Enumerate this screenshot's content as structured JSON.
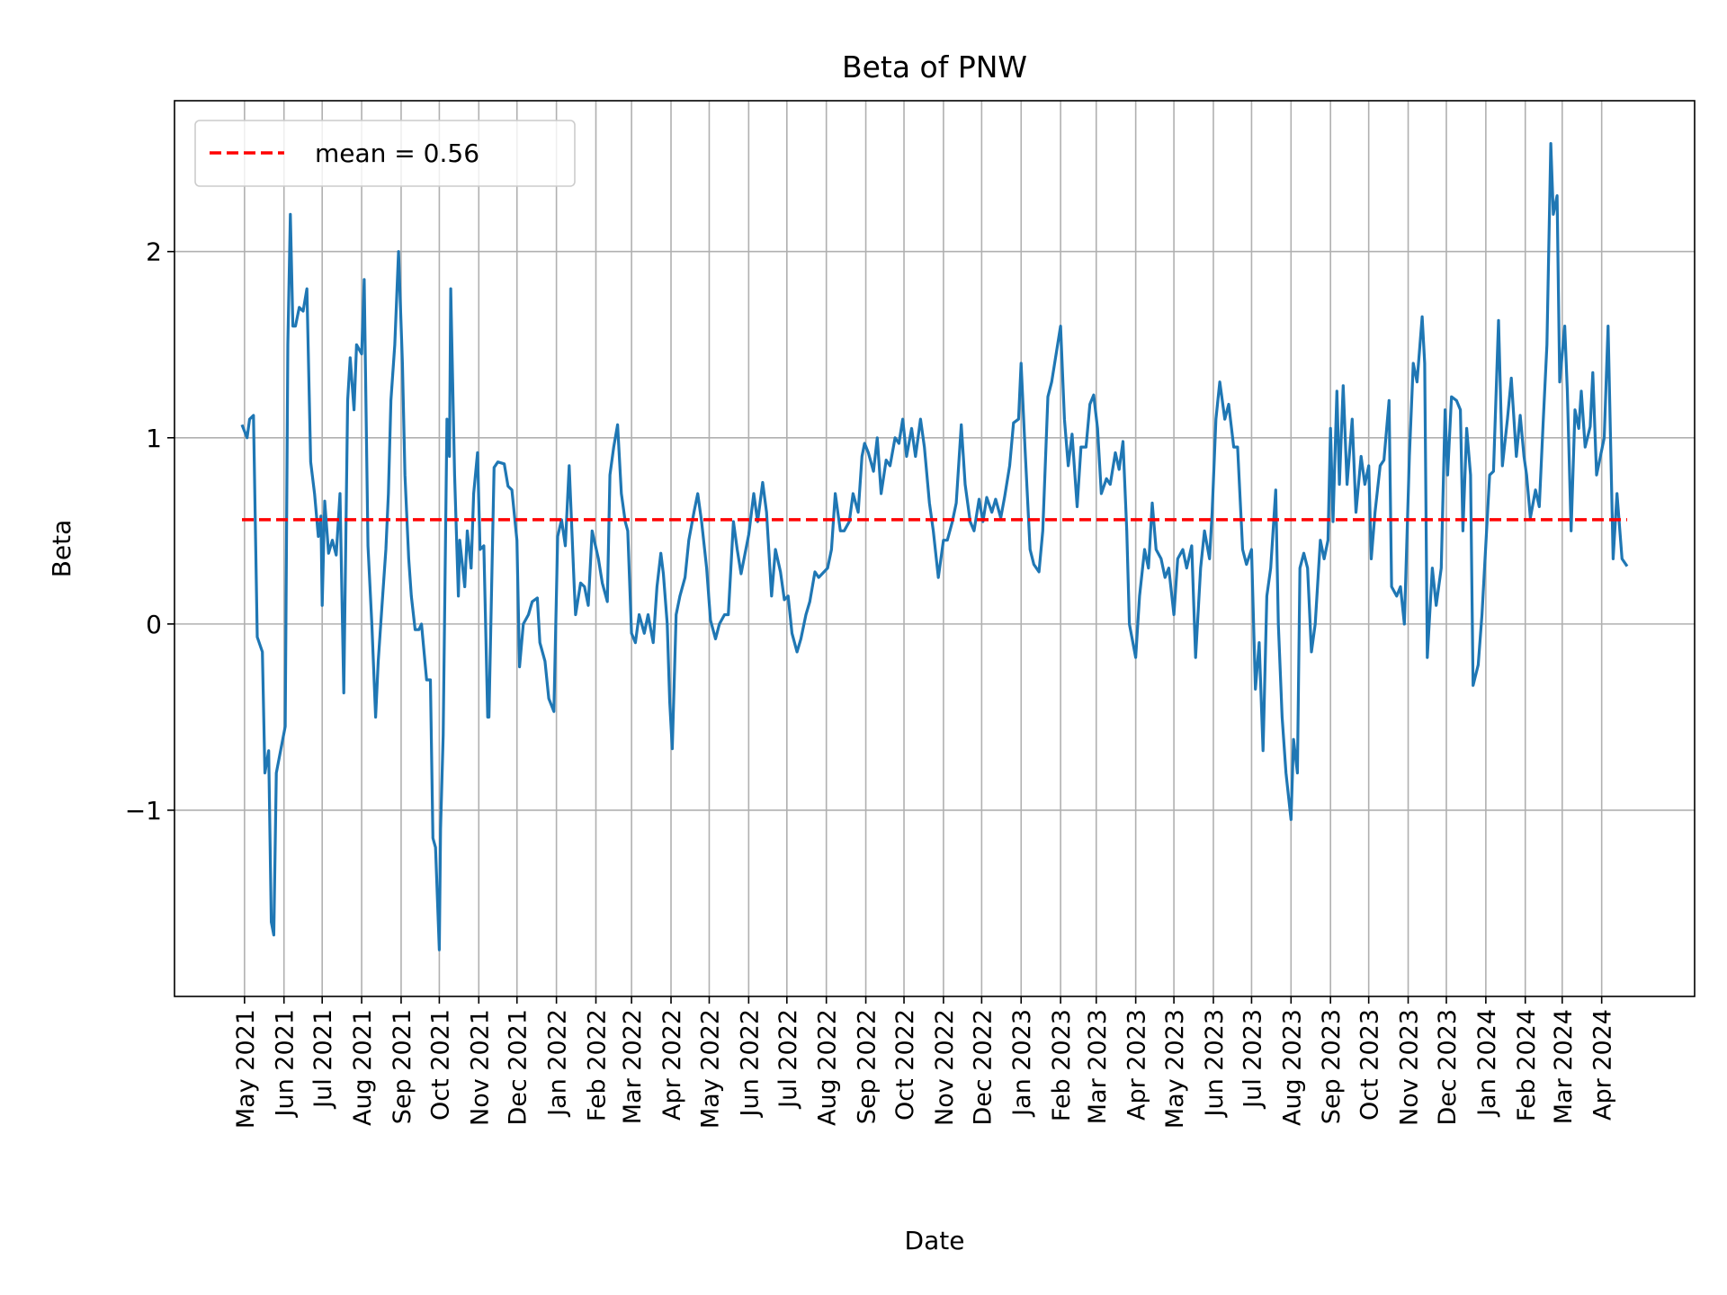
{
  "chart_data": {
    "type": "line",
    "title": "Beta of PNW",
    "xlabel": "Date",
    "ylabel": "Beta",
    "ylim": [
      -2.0,
      2.81
    ],
    "xlim": [
      "2021-03-07",
      "2024-06-13"
    ],
    "grid": true,
    "legend_placement": "top-left",
    "yticks": [
      -1,
      0,
      1,
      2
    ],
    "ytick_labels": [
      "−1",
      "0",
      "1",
      "2"
    ],
    "xticks": [
      "2021-05-01",
      "2021-06-01",
      "2021-07-01",
      "2021-08-01",
      "2021-09-01",
      "2021-10-01",
      "2021-11-01",
      "2021-12-01",
      "2022-01-01",
      "2022-02-01",
      "2022-03-01",
      "2022-04-01",
      "2022-05-01",
      "2022-06-01",
      "2022-07-01",
      "2022-08-01",
      "2022-09-01",
      "2022-10-01",
      "2022-11-01",
      "2022-12-01",
      "2023-01-01",
      "2023-02-01",
      "2023-03-01",
      "2023-04-01",
      "2023-05-01",
      "2023-06-01",
      "2023-07-01",
      "2023-08-01",
      "2023-09-01",
      "2023-10-01",
      "2023-11-01",
      "2023-12-01",
      "2024-01-01",
      "2024-02-01",
      "2024-03-01",
      "2024-04-01"
    ],
    "xtick_labels": [
      "May 2021",
      "Jun 2021",
      "Jul 2021",
      "Aug 2021",
      "Sep 2021",
      "Oct 2021",
      "Nov 2021",
      "Dec 2021",
      "Jan 2022",
      "Feb 2022",
      "Mar 2022",
      "Apr 2022",
      "May 2022",
      "Jun 2022",
      "Jul 2022",
      "Aug 2022",
      "Sep 2022",
      "Oct 2022",
      "Nov 2022",
      "Dec 2022",
      "Jan 2023",
      "Feb 2023",
      "Mar 2023",
      "Apr 2023",
      "May 2023",
      "Jun 2023",
      "Jul 2023",
      "Aug 2023",
      "Sep 2023",
      "Oct 2023",
      "Nov 2023",
      "Dec 2023",
      "Jan 2024",
      "Feb 2024",
      "Mar 2024",
      "Apr 2024"
    ],
    "colors": {
      "series": "#1f77b4",
      "mean": "#ff0000",
      "grid": "#b0b0b0"
    },
    "mean": {
      "label": "mean = 0.56",
      "value": 0.56
    },
    "series": [
      {
        "x": [
          "2021-04-29",
          "2021-05-03",
          "2021-05-05",
          "2021-05-08",
          "2021-05-11",
          "2021-05-15",
          "2021-05-17",
          "2021-05-20",
          "2021-05-22",
          "2021-05-24",
          "2021-05-26",
          "2021-06-02",
          "2021-06-04",
          "2021-06-06",
          "2021-06-08",
          "2021-06-10",
          "2021-06-13",
          "2021-06-16",
          "2021-06-19",
          "2021-06-22",
          "2021-06-25",
          "2021-06-28",
          "2021-06-30",
          "2021-07-01",
          "2021-07-03",
          "2021-07-06",
          "2021-07-09",
          "2021-07-12",
          "2021-07-15",
          "2021-07-18",
          "2021-07-21",
          "2021-07-23",
          "2021-07-26",
          "2021-07-28",
          "2021-08-01",
          "2021-08-03",
          "2021-08-06",
          "2021-08-09",
          "2021-08-12",
          "2021-08-14",
          "2021-08-17",
          "2021-08-20",
          "2021-08-22",
          "2021-08-24",
          "2021-08-27",
          "2021-08-30",
          "2021-09-02",
          "2021-09-04",
          "2021-09-07",
          "2021-09-09",
          "2021-09-12",
          "2021-09-15",
          "2021-09-17",
          "2021-09-21",
          "2021-09-24",
          "2021-09-26",
          "2021-09-28",
          "2021-10-01",
          "2021-10-02",
          "2021-10-04",
          "2021-10-07",
          "2021-10-09",
          "2021-10-10",
          "2021-10-13",
          "2021-10-16",
          "2021-10-17",
          "2021-10-21",
          "2021-10-23",
          "2021-10-26",
          "2021-10-28",
          "2021-10-31",
          "2021-11-02",
          "2021-11-05",
          "2021-11-08",
          "2021-11-09",
          "2021-11-13",
          "2021-11-16",
          "2021-11-21",
          "2021-11-24",
          "2021-11-27",
          "2021-12-01",
          "2021-12-03",
          "2021-12-06",
          "2021-12-10",
          "2021-12-13",
          "2021-12-17",
          "2021-12-19",
          "2021-12-23",
          "2021-12-26",
          "2021-12-30",
          "2022-01-02",
          "2022-01-05",
          "2022-01-08",
          "2022-01-11",
          "2022-01-15",
          "2022-01-16",
          "2022-01-20",
          "2022-01-23",
          "2022-01-26",
          "2022-01-29",
          "2022-02-03",
          "2022-02-06",
          "2022-02-10",
          "2022-02-12",
          "2022-02-15",
          "2022-02-18",
          "2022-02-21",
          "2022-02-24",
          "2022-02-26",
          "2022-03-01",
          "2022-03-04",
          "2022-03-07",
          "2022-03-11",
          "2022-03-14",
          "2022-03-18",
          "2022-03-21",
          "2022-03-24",
          "2022-03-26",
          "2022-03-29",
          "2022-03-31",
          "2022-04-02",
          "2022-04-05",
          "2022-04-08",
          "2022-04-12",
          "2022-04-15",
          "2022-04-19",
          "2022-04-22",
          "2022-04-25",
          "2022-04-29",
          "2022-05-02",
          "2022-05-06",
          "2022-05-09",
          "2022-05-13",
          "2022-05-16",
          "2022-05-20",
          "2022-05-23",
          "2022-05-26",
          "2022-06-01",
          "2022-06-05",
          "2022-06-08",
          "2022-06-12",
          "2022-06-15",
          "2022-06-19",
          "2022-06-22",
          "2022-06-26",
          "2022-06-29",
          "2022-07-02",
          "2022-07-05",
          "2022-07-09",
          "2022-07-12",
          "2022-07-16",
          "2022-07-19",
          "2022-07-23",
          "2022-07-26",
          "2022-08-02",
          "2022-08-05",
          "2022-08-08",
          "2022-08-12",
          "2022-08-15",
          "2022-08-19",
          "2022-08-22",
          "2022-08-26",
          "2022-08-29",
          "2022-08-31",
          "2022-09-03",
          "2022-09-07",
          "2022-09-10",
          "2022-09-13",
          "2022-09-17",
          "2022-09-20",
          "2022-09-24",
          "2022-09-27",
          "2022-09-30",
          "2022-10-03",
          "2022-10-07",
          "2022-10-10",
          "2022-10-14",
          "2022-10-17",
          "2022-10-21",
          "2022-10-24",
          "2022-10-28",
          "2022-11-01",
          "2022-11-04",
          "2022-11-08",
          "2022-11-11",
          "2022-11-15",
          "2022-11-18",
          "2022-11-22",
          "2022-11-25",
          "2022-11-29",
          "2022-12-02",
          "2022-12-05",
          "2022-12-09",
          "2022-12-12",
          "2022-12-16",
          "2022-12-19",
          "2022-12-23",
          "2022-12-26",
          "2022-12-30",
          "2023-01-01",
          "2023-01-04",
          "2023-01-08",
          "2023-01-11",
          "2023-01-15",
          "2023-01-18",
          "2023-01-22",
          "2023-01-25",
          "2023-02-01",
          "2023-02-04",
          "2023-02-07",
          "2023-02-10",
          "2023-02-14",
          "2023-02-17",
          "2023-02-21",
          "2023-02-24",
          "2023-02-27",
          "2023-03-02",
          "2023-03-05",
          "2023-03-09",
          "2023-03-12",
          "2023-03-16",
          "2023-03-19",
          "2023-03-22",
          "2023-03-25",
          "2023-03-27",
          "2023-04-01",
          "2023-04-04",
          "2023-04-08",
          "2023-04-11",
          "2023-04-14",
          "2023-04-17",
          "2023-04-21",
          "2023-04-24",
          "2023-04-27",
          "2023-05-01",
          "2023-05-04",
          "2023-05-08",
          "2023-05-11",
          "2023-05-15",
          "2023-05-18",
          "2023-05-22",
          "2023-05-25",
          "2023-05-29",
          "2023-05-31",
          "2023-06-03",
          "2023-06-06",
          "2023-06-10",
          "2023-06-13",
          "2023-06-17",
          "2023-06-20",
          "2023-06-24",
          "2023-06-27",
          "2023-07-01",
          "2023-07-04",
          "2023-07-07",
          "2023-07-10",
          "2023-07-13",
          "2023-07-16",
          "2023-07-20",
          "2023-07-22",
          "2023-07-25",
          "2023-07-28",
          "2023-08-01",
          "2023-08-03",
          "2023-08-06",
          "2023-08-08",
          "2023-08-11",
          "2023-08-14",
          "2023-08-17",
          "2023-08-20",
          "2023-08-24",
          "2023-08-27",
          "2023-08-30",
          "2023-09-01",
          "2023-09-03",
          "2023-09-06",
          "2023-09-08",
          "2023-09-11",
          "2023-09-14",
          "2023-09-18",
          "2023-09-21",
          "2023-09-25",
          "2023-09-28",
          "2023-10-01",
          "2023-10-03",
          "2023-10-06",
          "2023-10-10",
          "2023-10-13",
          "2023-10-17",
          "2023-10-19",
          "2023-10-23",
          "2023-10-26",
          "2023-10-29",
          "2023-11-02",
          "2023-11-05",
          "2023-11-08",
          "2023-11-12",
          "2023-11-14",
          "2023-11-16",
          "2023-11-20",
          "2023-11-23",
          "2023-11-27",
          "2023-11-30",
          "2023-12-02",
          "2023-12-05",
          "2023-12-09",
          "2023-12-12",
          "2023-12-14",
          "2023-12-17",
          "2023-12-20",
          "2023-12-22",
          "2023-12-26",
          "2023-12-29",
          "2024-01-04",
          "2024-01-07",
          "2024-01-11",
          "2024-01-14",
          "2024-01-18",
          "2024-01-21",
          "2024-01-25",
          "2024-01-28",
          "2024-01-31",
          "2024-02-02",
          "2024-02-05",
          "2024-02-09",
          "2024-02-12",
          "2024-02-15",
          "2024-02-18",
          "2024-02-21",
          "2024-02-23",
          "2024-02-26",
          "2024-02-28",
          "2024-03-03",
          "2024-03-05",
          "2024-03-08",
          "2024-03-11",
          "2024-03-14",
          "2024-03-16",
          "2024-03-19",
          "2024-03-23",
          "2024-03-25",
          "2024-03-28",
          "2024-04-03",
          "2024-04-06",
          "2024-04-10",
          "2024-04-13",
          "2024-04-17",
          "2024-04-21"
        ],
        "y": [
          1.07,
          1.0,
          1.1,
          1.12,
          -0.07,
          -0.15,
          -0.8,
          -0.68,
          -1.6,
          -1.67,
          -0.8,
          -0.55,
          1.5,
          2.2,
          1.6,
          1.6,
          1.7,
          1.68,
          1.8,
          0.87,
          0.7,
          0.47,
          0.58,
          0.1,
          0.66,
          0.38,
          0.45,
          0.37,
          0.7,
          -0.37,
          1.2,
          1.43,
          1.15,
          1.5,
          1.45,
          1.85,
          0.42,
          0.0,
          -0.5,
          -0.2,
          0.1,
          0.4,
          0.7,
          1.2,
          1.5,
          2.0,
          1.4,
          0.8,
          0.35,
          0.15,
          -0.03,
          -0.03,
          0.0,
          -0.3,
          -0.3,
          -1.15,
          -1.2,
          -1.75,
          -1.1,
          -0.6,
          1.1,
          0.9,
          1.8,
          0.8,
          0.15,
          0.45,
          0.2,
          0.5,
          0.3,
          0.7,
          0.92,
          0.4,
          0.42,
          -0.5,
          -0.5,
          0.84,
          0.87,
          0.86,
          0.74,
          0.72,
          0.45,
          -0.23,
          0.0,
          0.05,
          0.12,
          0.14,
          -0.1,
          -0.2,
          -0.4,
          -0.47,
          0.47,
          0.56,
          0.42,
          0.85,
          0.2,
          0.05,
          0.22,
          0.2,
          0.1,
          0.5,
          0.35,
          0.22,
          0.12,
          0.8,
          0.95,
          1.07,
          0.7,
          0.55,
          0.5,
          -0.05,
          -0.1,
          0.05,
          -0.05,
          0.05,
          -0.1,
          0.2,
          0.38,
          0.27,
          0.0,
          -0.42,
          -0.67,
          0.05,
          0.15,
          0.25,
          0.45,
          0.6,
          0.7,
          0.55,
          0.3,
          0.02,
          -0.08,
          0.0,
          0.05,
          0.05,
          0.55,
          0.4,
          0.27,
          0.48,
          0.7,
          0.55,
          0.76,
          0.6,
          0.15,
          0.4,
          0.28,
          0.13,
          0.15,
          -0.05,
          -0.15,
          -0.08,
          0.05,
          0.12,
          0.28,
          0.25,
          0.3,
          0.4,
          0.7,
          0.5,
          0.5,
          0.55,
          0.7,
          0.6,
          0.9,
          0.97,
          0.92,
          0.82,
          1.0,
          0.7,
          0.88,
          0.85,
          1.0,
          0.97,
          1.1,
          0.9,
          1.05,
          0.9,
          1.1,
          0.95,
          0.65,
          0.5,
          0.25,
          0.45,
          0.45,
          0.55,
          0.65,
          1.07,
          0.75,
          0.55,
          0.5,
          0.67,
          0.55,
          0.68,
          0.6,
          0.67,
          0.57,
          0.68,
          0.85,
          1.08,
          1.1,
          1.4,
          0.95,
          0.4,
          0.32,
          0.28,
          0.5,
          1.22,
          1.3,
          1.6,
          1.1,
          0.85,
          1.02,
          0.63,
          0.95,
          0.95,
          1.18,
          1.23,
          1.05,
          0.7,
          0.78,
          0.75,
          0.92,
          0.83,
          0.98,
          0.5,
          0.0,
          -0.18,
          0.15,
          0.4,
          0.3,
          0.65,
          0.4,
          0.35,
          0.25,
          0.3,
          0.05,
          0.35,
          0.4,
          0.3,
          0.42,
          -0.18,
          0.3,
          0.5,
          0.35,
          0.6,
          1.1,
          1.3,
          1.1,
          1.18,
          0.95,
          0.95,
          0.4,
          0.32,
          0.4,
          -0.35,
          -0.1,
          -0.68,
          0.15,
          0.3,
          0.72,
          0.0,
          -0.5,
          -0.8,
          -1.05,
          -0.62,
          -0.8,
          0.3,
          0.38,
          0.3,
          -0.15,
          0.0,
          0.45,
          0.35,
          0.45,
          1.05,
          0.55,
          1.25,
          0.75,
          1.28,
          0.75,
          1.1,
          0.6,
          0.9,
          0.75,
          0.85,
          0.35,
          0.6,
          0.85,
          0.88,
          1.2,
          0.2,
          0.15,
          0.2,
          0.0,
          0.9,
          1.4,
          1.3,
          1.65,
          1.4,
          -0.18,
          0.3,
          0.1,
          0.3,
          1.15,
          0.8,
          1.22,
          1.2,
          1.15,
          0.5,
          1.05,
          0.8,
          -0.33,
          -0.22,
          0.05,
          0.8,
          0.82,
          1.63,
          0.85,
          1.1,
          1.32,
          0.9,
          1.12,
          0.9,
          0.8,
          0.57,
          0.72,
          0.63,
          1.08,
          1.5,
          2.58,
          2.2,
          2.3,
          1.3,
          1.6,
          1.25,
          0.5,
          1.15,
          1.05,
          1.25,
          0.95,
          1.06,
          1.35,
          0.8,
          1.0,
          1.6,
          0.35,
          0.7,
          0.35,
          0.31
        ]
      }
    ]
  }
}
